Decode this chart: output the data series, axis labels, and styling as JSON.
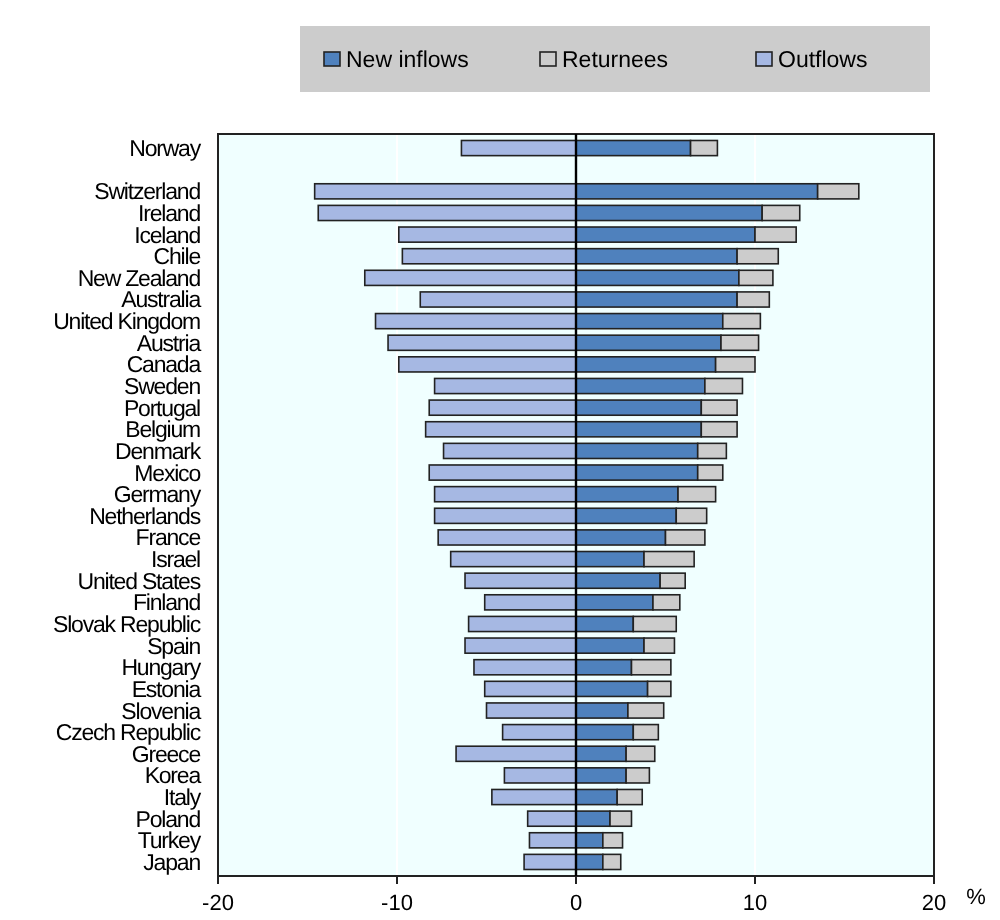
{
  "chart_data": {
    "type": "bar",
    "orientation": "horizontal",
    "stacked": true,
    "xlabel": "%",
    "legend": "top",
    "grid": "x",
    "categories": [
      "Norway",
      null,
      "Switzerland",
      "Ireland",
      "Iceland",
      "Chile",
      "New Zealand",
      "Australia",
      "United Kingdom",
      "Austria",
      "Canada",
      "Sweden",
      "Portugal",
      "Belgium",
      "Denmark",
      "Mexico",
      "Germany",
      "Netherlands",
      "France",
      "Israel",
      "United States",
      "Finland",
      "Slovak Republic",
      "Spain",
      "Hungary",
      "Estonia",
      "Slovenia",
      "Czech Republic",
      "Greece",
      "Korea",
      "Italy",
      "Poland",
      "Turkey",
      "Japan"
    ],
    "series": [
      {
        "name": "New inflows",
        "color": "#4f81bd",
        "values": [
          6.4,
          null,
          13.5,
          10.4,
          10.0,
          9.0,
          9.1,
          9.0,
          8.2,
          8.1,
          7.8,
          7.2,
          7.0,
          7.0,
          6.8,
          6.8,
          5.7,
          5.6,
          5.0,
          3.8,
          4.7,
          4.3,
          3.2,
          3.8,
          3.1,
          4.0,
          2.9,
          3.2,
          2.8,
          2.8,
          2.3,
          1.9,
          1.5,
          1.5
        ]
      },
      {
        "name": "Returnees",
        "color": "#cccccc",
        "values": [
          1.5,
          null,
          2.3,
          2.1,
          2.3,
          2.3,
          1.9,
          1.8,
          2.1,
          2.1,
          2.2,
          2.1,
          2.0,
          2.0,
          1.6,
          1.4,
          2.1,
          1.7,
          2.2,
          2.8,
          1.4,
          1.5,
          2.4,
          1.7,
          2.2,
          1.3,
          2.0,
          1.4,
          1.6,
          1.3,
          1.4,
          1.2,
          1.1,
          1.0
        ]
      },
      {
        "name": "Outflows",
        "color": "#a6b8e3",
        "values": [
          -6.4,
          null,
          -14.6,
          -14.4,
          -9.9,
          -9.7,
          -11.8,
          -8.7,
          -11.2,
          -10.5,
          -9.9,
          -7.9,
          -8.2,
          -8.4,
          -7.4,
          -8.2,
          -7.9,
          -7.9,
          -7.7,
          -7.0,
          -6.2,
          -5.1,
          -6.0,
          -6.2,
          -5.7,
          -5.1,
          -5.0,
          -4.1,
          -6.7,
          -4.0,
          -4.7,
          -2.7,
          -2.6,
          -2.9
        ]
      }
    ],
    "xlim": [
      -20,
      20
    ],
    "xticks": [
      -20,
      -10,
      0,
      10,
      20
    ]
  }
}
